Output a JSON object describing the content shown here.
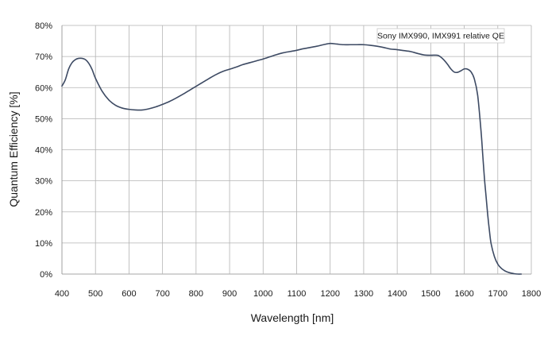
{
  "chart_data": {
    "type": "line",
    "title": "",
    "xlabel": "Wavelength [nm]",
    "ylabel": "Quantum Efficiency [%]",
    "xlim": [
      400,
      1800
    ],
    "ylim": [
      0,
      80
    ],
    "x_ticks": [
      400,
      500,
      600,
      700,
      800,
      900,
      1000,
      1100,
      1200,
      1300,
      1400,
      1500,
      1600,
      1700,
      1800
    ],
    "y_ticks": [
      0,
      10,
      20,
      30,
      40,
      50,
      60,
      70,
      80
    ],
    "y_tick_labels": [
      "0%",
      "10%",
      "20%",
      "30%",
      "40%",
      "50%",
      "60%",
      "70%",
      "80%"
    ],
    "grid": true,
    "legend_position": "top-right",
    "series": [
      {
        "name": "Sony IMX990, IMX991 relative QE",
        "color": "#3d4a63",
        "x": [
          400,
          410,
          420,
          430,
          440,
          450,
          460,
          470,
          480,
          490,
          500,
          520,
          540,
          560,
          580,
          600,
          620,
          640,
          660,
          680,
          700,
          720,
          740,
          760,
          780,
          800,
          820,
          840,
          860,
          880,
          900,
          920,
          940,
          960,
          980,
          1000,
          1020,
          1040,
          1060,
          1080,
          1100,
          1120,
          1140,
          1160,
          1180,
          1200,
          1220,
          1240,
          1260,
          1280,
          1300,
          1320,
          1340,
          1360,
          1380,
          1400,
          1420,
          1440,
          1460,
          1480,
          1500,
          1520,
          1530,
          1540,
          1550,
          1560,
          1570,
          1580,
          1590,
          1600,
          1610,
          1620,
          1630,
          1640,
          1650,
          1655,
          1660,
          1665,
          1670,
          1675,
          1680,
          1690,
          1700,
          1710,
          1720,
          1730,
          1740,
          1750,
          1760,
          1770
        ],
        "y": [
          60.5,
          62.5,
          66.0,
          68.0,
          69.0,
          69.4,
          69.4,
          69.0,
          67.8,
          65.8,
          63.0,
          58.8,
          56.0,
          54.3,
          53.4,
          53.0,
          52.8,
          52.8,
          53.2,
          53.8,
          54.6,
          55.5,
          56.6,
          57.8,
          59.1,
          60.4,
          61.7,
          63.0,
          64.2,
          65.2,
          65.9,
          66.6,
          67.4,
          68.0,
          68.6,
          69.2,
          69.9,
          70.6,
          71.2,
          71.6,
          72.0,
          72.5,
          72.9,
          73.3,
          73.8,
          74.2,
          74.0,
          73.8,
          73.8,
          73.8,
          73.8,
          73.6,
          73.3,
          72.9,
          72.4,
          72.2,
          71.9,
          71.6,
          71.0,
          70.5,
          70.4,
          70.4,
          69.8,
          68.8,
          67.5,
          66.0,
          65.0,
          64.9,
          65.4,
          66.0,
          65.9,
          65.1,
          62.8,
          57.5,
          46.0,
          38.5,
          31.0,
          25.0,
          19.0,
          14.0,
          9.8,
          5.6,
          3.2,
          1.9,
          1.1,
          0.6,
          0.3,
          0.1,
          0.0,
          0.0
        ]
      }
    ]
  },
  "style": {
    "line_color": "#3d4a63",
    "grid_color": "#b3b3b3",
    "axis_color": "#8a8a8a",
    "legend_border_color": "#c8c8c8"
  }
}
